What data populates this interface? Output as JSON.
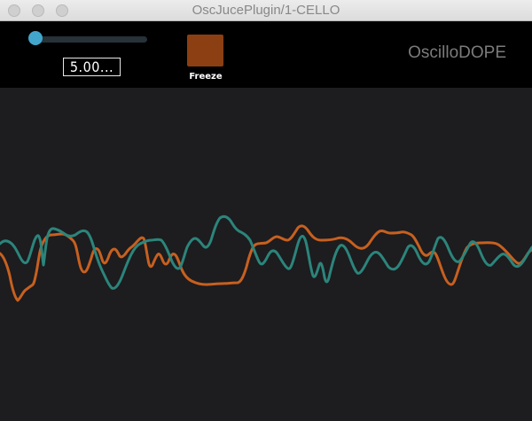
{
  "window": {
    "title": "OscJucePlugin/1-CELLO"
  },
  "controls": {
    "slider_value_text": "5.00...",
    "slider_level": 0.0,
    "freeze_label": "Freeze",
    "freeze_color": "#8b3f12",
    "accent_color": "#42a5cc"
  },
  "brand": {
    "name": "OscilloDOPE"
  },
  "scope": {
    "background": "#1d1c1f",
    "channels": [
      {
        "color": "#c7601f"
      },
      {
        "color": "#2b857b"
      }
    ]
  }
}
